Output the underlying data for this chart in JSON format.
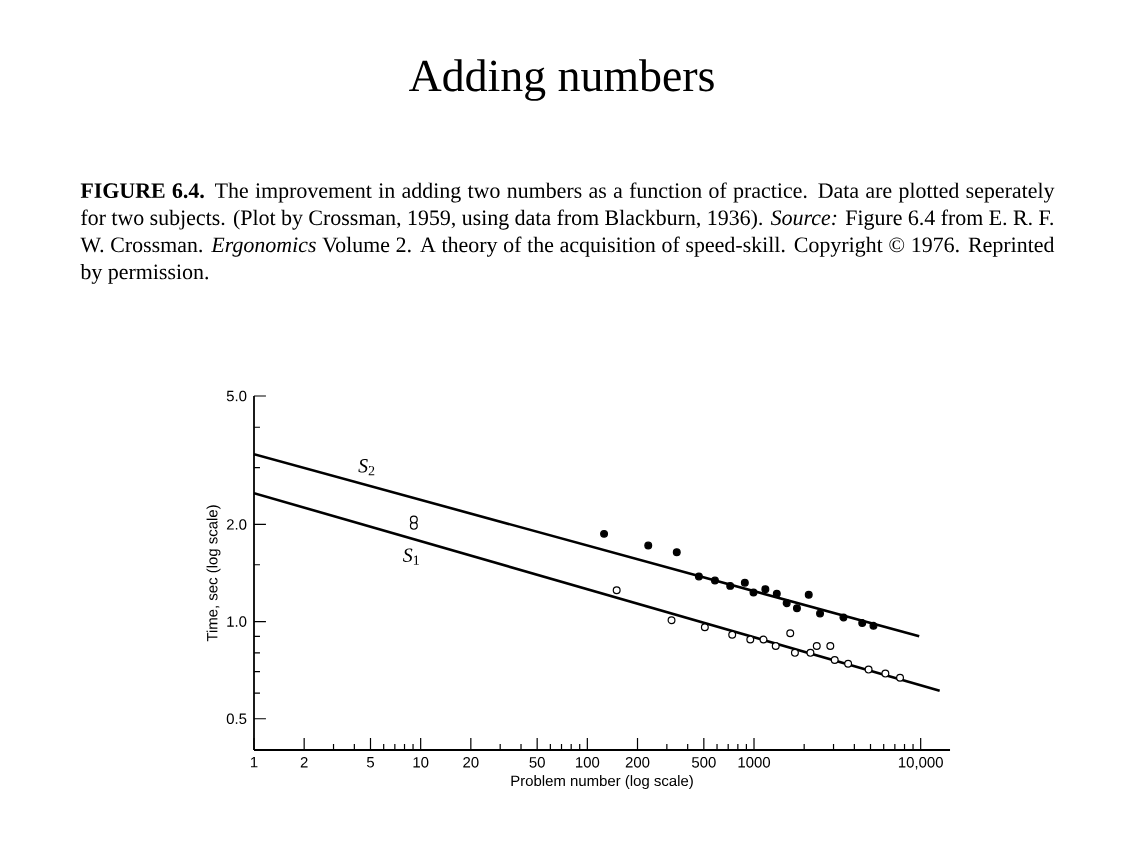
{
  "chart_data": {
    "type": "scatter",
    "title": "Adding numbers",
    "subtitle": "**FIGURE 6.4.** The improvement in adding two numbers as a function of practice. Data are plotted seperately for two subjects. (Plot by Crossman, 1959, using data from Blackburn, 1936). *Source:* Figure 6.4 from E. R. F. W. Crossman. *Ergonomics* Volume 2. A theory of the acquisition of speed-skill. Copyright © 1976. Reprinted by permission.",
    "xlabel": "Problem number (log scale)",
    "ylabel": "Time, sec (log scale)",
    "log": "xy",
    "xlim": [
      1,
      15000
    ],
    "ylim": [
      0.4,
      5
    ],
    "xticks": [
      1,
      2,
      {
        "value": 3,
        "label": null
      },
      {
        "value": 4,
        "label": null
      },
      5,
      {
        "value": 6,
        "label": null
      },
      {
        "value": 7,
        "label": null
      },
      {
        "value": 8,
        "label": null
      },
      {
        "value": 9,
        "label": null
      },
      10,
      20,
      {
        "value": 30,
        "label": null
      },
      {
        "value": 40,
        "label": null
      },
      50,
      {
        "value": 60,
        "label": null
      },
      {
        "value": 70,
        "label": null
      },
      {
        "value": 80,
        "label": null
      },
      {
        "value": 90,
        "label": null
      },
      100,
      200,
      {
        "value": 300,
        "label": null
      },
      {
        "value": 400,
        "label": null
      },
      500,
      {
        "value": 600,
        "label": null
      },
      {
        "value": 700,
        "label": null
      },
      {
        "value": 800,
        "label": null
      },
      {
        "value": 900,
        "label": null
      },
      1000,
      {
        "value": 2000,
        "label": null
      },
      {
        "value": 3000,
        "label": null
      },
      {
        "value": 4000,
        "label": null
      },
      {
        "value": 5000,
        "label": null
      },
      {
        "value": 6000,
        "label": null
      },
      {
        "value": 7000,
        "label": null
      },
      {
        "value": 8000,
        "label": null
      },
      {
        "value": 9000,
        "label": null
      },
      {
        "value": 10000,
        "label": "10,000"
      }
    ],
    "yticks": [
      {
        "value": 0.5,
        "label": "0.5"
      },
      {
        "value": 0.6,
        "label": null
      },
      {
        "value": 0.7,
        "label": null
      },
      {
        "value": 0.8,
        "label": null
      },
      {
        "value": 0.9,
        "label": null
      },
      {
        "value": 1,
        "label": "1.0"
      },
      {
        "value": 1.5,
        "label": null
      },
      {
        "value": 2,
        "label": "2.0"
      },
      {
        "value": 3,
        "label": null
      },
      {
        "value": 4,
        "label": null
      },
      {
        "value": 5,
        "label": "5.0"
      }
    ],
    "series": [
      {
        "name": "*S*$_{2}$",
        "type": "line",
        "color": "#000000",
        "x": [
          1,
          9800
        ],
        "values": [
          3.3,
          0.9
        ]
      },
      {
        "name": "*S*$_{1}$",
        "type": "line",
        "color": "#000000",
        "x": [
          1,
          13000
        ],
        "values": [
          2.5,
          0.61
        ]
      },
      {
        "marker": "circle",
        "color": "#000000",
        "x": [
          126,
          232,
          344,
          467,
          583,
          720,
          881,
          993,
          1170,
          1370,
          1570,
          1810,
          2130,
          2490,
          3440,
          4460,
          5210
        ],
        "values": [
          1.87,
          1.72,
          1.64,
          1.38,
          1.34,
          1.29,
          1.32,
          1.23,
          1.26,
          1.22,
          1.14,
          1.1,
          1.21,
          1.06,
          1.03,
          0.99,
          0.97
        ]
      },
      {
        "marker": "circle",
        "color": "#ffffff",
        "x": [
          9.1,
          9.1,
          150,
          320,
          507,
          740,
          950,
          1140,
          1350,
          1650,
          1760,
          2180,
          2380,
          2870,
          3050,
          3670,
          4870,
          6140,
          7520
        ],
        "values": [
          1.98,
          2.07,
          1.25,
          1.01,
          0.96,
          0.91,
          0.88,
          0.88,
          0.84,
          0.92,
          0.8,
          0.8,
          0.84,
          0.84,
          0.76,
          0.74,
          0.71,
          0.69,
          0.67
        ]
      }
    ]
  }
}
